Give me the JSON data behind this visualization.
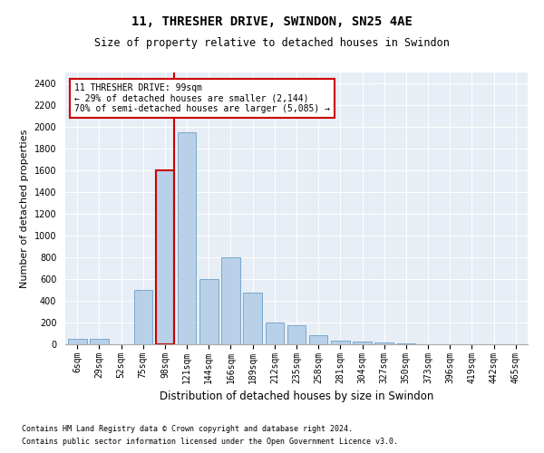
{
  "title": "11, THRESHER DRIVE, SWINDON, SN25 4AE",
  "subtitle": "Size of property relative to detached houses in Swindon",
  "xlabel": "Distribution of detached houses by size in Swindon",
  "ylabel": "Number of detached properties",
  "footnote1": "Contains HM Land Registry data © Crown copyright and database right 2024.",
  "footnote2": "Contains public sector information licensed under the Open Government Licence v3.0.",
  "annotation_line1": "11 THRESHER DRIVE: 99sqm",
  "annotation_line2": "← 29% of detached houses are smaller (2,144)",
  "annotation_line3": "70% of semi-detached houses are larger (5,085) →",
  "bar_color": "#b8d0e8",
  "bar_edge_color": "#6a9fc8",
  "red_color": "#cc0000",
  "categories": [
    "6sqm",
    "29sqm",
    "52sqm",
    "75sqm",
    "98sqm",
    "121sqm",
    "144sqm",
    "166sqm",
    "189sqm",
    "212sqm",
    "235sqm",
    "258sqm",
    "281sqm",
    "304sqm",
    "327sqm",
    "350sqm",
    "373sqm",
    "396sqm",
    "419sqm",
    "442sqm",
    "465sqm"
  ],
  "values": [
    50,
    50,
    0,
    500,
    1600,
    1950,
    600,
    800,
    475,
    200,
    175,
    85,
    30,
    25,
    15,
    5,
    0,
    0,
    0,
    0,
    0
  ],
  "ylim": [
    0,
    2500
  ],
  "yticks": [
    0,
    200,
    400,
    600,
    800,
    1000,
    1200,
    1400,
    1600,
    1800,
    2000,
    2200,
    2400
  ],
  "highlight_bin_index": 4,
  "bg_color": "#e8eef5",
  "grid_color": "#ffffff",
  "title_fontsize": 10,
  "subtitle_fontsize": 8.5,
  "ylabel_fontsize": 8,
  "xlabel_fontsize": 8.5,
  "tick_fontsize": 7,
  "annotation_fontsize": 7,
  "footnote_fontsize": 6
}
